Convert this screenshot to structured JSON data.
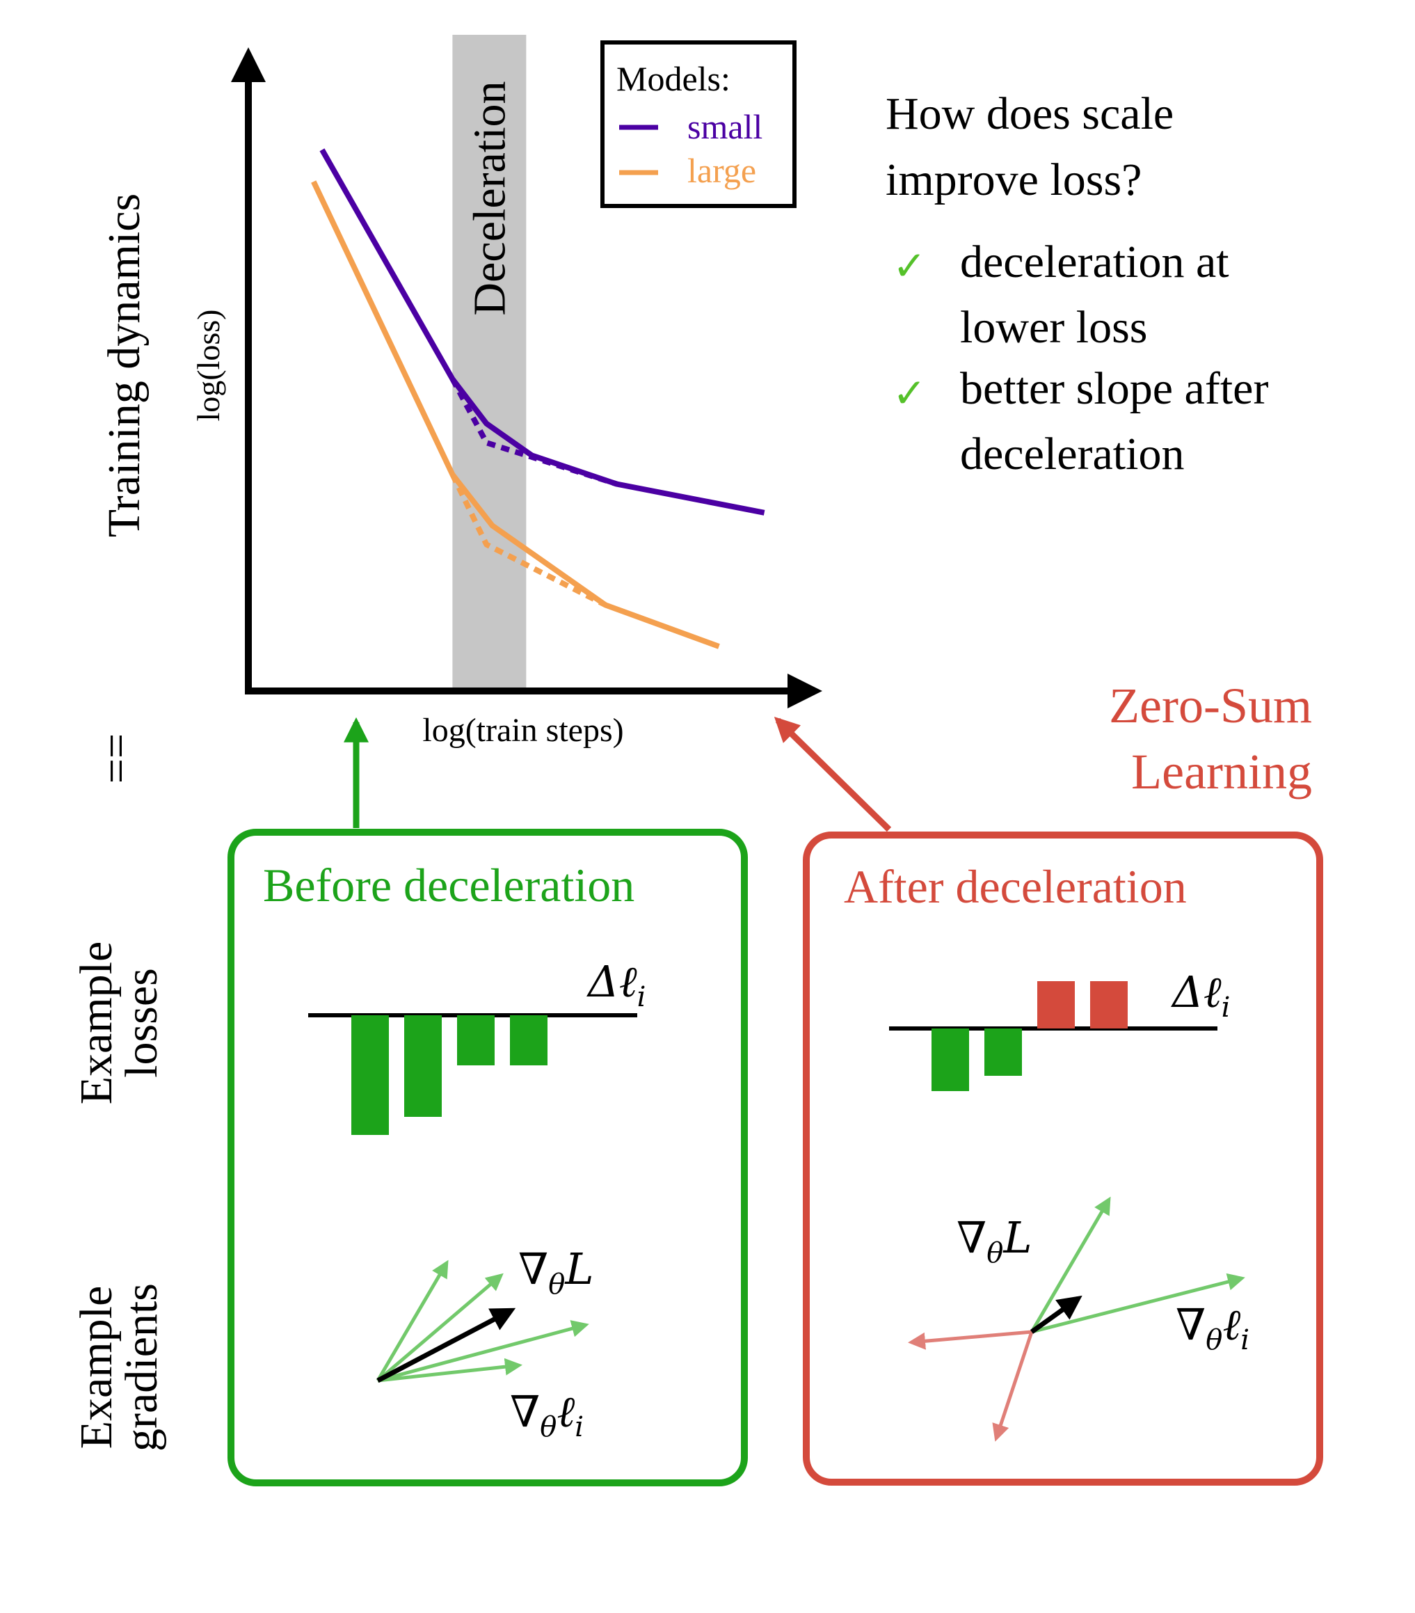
{
  "colors": {
    "small": "#4b00a3",
    "large": "#f4a04f",
    "band": "#c6c6c6",
    "green": "#1ca31a",
    "green_light": "#72c96b",
    "red": "#d44a3c",
    "red_light": "#e07f78",
    "check": "#55c12a",
    "black": "#000000"
  },
  "plot": {
    "ylabel": "log(loss)",
    "xlabel": "log(train steps)",
    "band_label": "Deceleration",
    "legend": {
      "title": "Models:",
      "small": "small",
      "large": "large"
    }
  },
  "chart_data": {
    "type": "line",
    "title": "",
    "xlabel": "log(train steps)",
    "ylabel": "log(loss)",
    "xlim": [
      0,
      10
    ],
    "ylim": [
      0,
      10
    ],
    "deceleration_band": [
      3.6,
      4.9
    ],
    "series": [
      {
        "name": "small",
        "style": "solid",
        "points": [
          [
            1.3,
            8.5
          ],
          [
            3.6,
            4.9
          ],
          [
            4.2,
            4.2
          ],
          [
            5.0,
            3.7
          ],
          [
            6.5,
            3.25
          ],
          [
            9.1,
            2.8
          ]
        ]
      },
      {
        "name": "small",
        "style": "dotted",
        "points": [
          [
            3.6,
            4.9
          ],
          [
            4.2,
            3.9
          ],
          [
            6.5,
            3.25
          ]
        ]
      },
      {
        "name": "large",
        "style": "solid",
        "points": [
          [
            1.15,
            8.0
          ],
          [
            3.6,
            3.4
          ],
          [
            4.3,
            2.6
          ],
          [
            6.3,
            1.35
          ],
          [
            8.3,
            0.7
          ]
        ]
      },
      {
        "name": "large",
        "style": "dotted",
        "points": [
          [
            3.6,
            3.4
          ],
          [
            4.2,
            2.3
          ],
          [
            6.3,
            1.35
          ]
        ]
      }
    ]
  },
  "row_labels": {
    "top": "Training dynamics",
    "equals": "==",
    "losses_line1": "Example",
    "losses_line2": "losses",
    "gradients_line1": "Example",
    "gradients_line2": "gradients"
  },
  "question": {
    "line1": "How does scale",
    "line2": "improve loss?",
    "check_icon": "✓",
    "item1_line1": "deceleration at",
    "item1_line2": "lower loss",
    "item2_line1": "better slope after",
    "item2_line2": "deceleration"
  },
  "zero_sum": {
    "line1": "Zero-Sum",
    "line2": "Learning"
  },
  "before_panel": {
    "title": "Before deceleration",
    "delta_label": "Δℓ",
    "delta_sub": "i",
    "bars": [
      -1.72,
      -1.46,
      -0.72,
      -0.72
    ],
    "grad_total": "∇",
    "grad_total_sub": "θ",
    "grad_total_var": "L",
    "grad_ex": "∇",
    "grad_ex_sub": "θ",
    "grad_ex_var": "ℓ",
    "grad_ex_sub2": "i"
  },
  "after_panel": {
    "title": "After deceleration",
    "delta_label": "Δℓ",
    "delta_sub": "i",
    "bars": [
      -0.9,
      -0.68,
      0.68,
      0.68
    ],
    "grad_total": "∇",
    "grad_total_sub": "θ",
    "grad_total_var": "L",
    "grad_ex": "∇",
    "grad_ex_sub": "θ",
    "grad_ex_var": "ℓ",
    "grad_ex_sub2": "i"
  }
}
